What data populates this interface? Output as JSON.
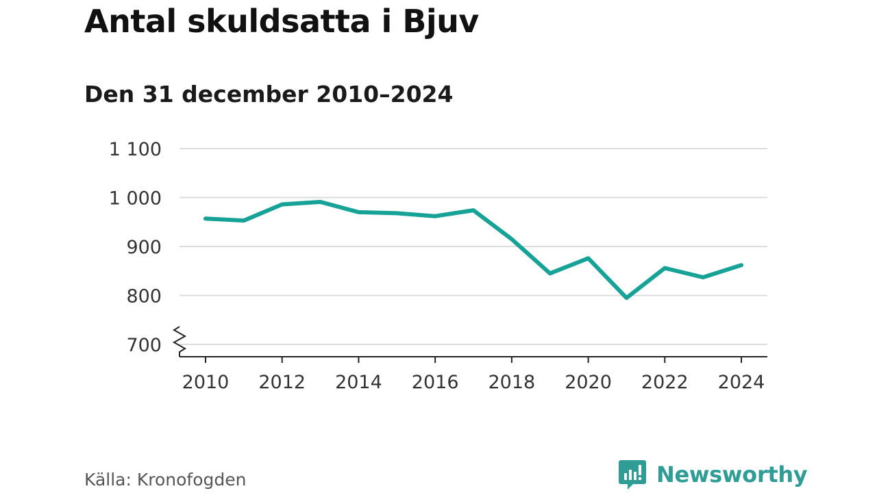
{
  "chart_data": {
    "type": "line",
    "title": "Antal skuldsatta i Bjuv",
    "subtitle": "Den 31 december 2010–2024",
    "x": [
      2010,
      2011,
      2012,
      2013,
      2014,
      2015,
      2016,
      2017,
      2018,
      2019,
      2020,
      2021,
      2022,
      2023,
      2024
    ],
    "series": [
      {
        "values": [
          957,
          953,
          986,
          991,
          970,
          968,
          962,
          974,
          915,
          845,
          876,
          795,
          856,
          837,
          862
        ]
      }
    ],
    "xticks": [
      2010,
      2012,
      2014,
      2016,
      2018,
      2020,
      2022,
      2024
    ],
    "xtick_labels": [
      "2010",
      "2012",
      "2014",
      "2016",
      "2018",
      "2020",
      "2022",
      "2024"
    ],
    "yticks": [
      700,
      800,
      900,
      1000,
      1100
    ],
    "ytick_labels": [
      "700",
      "800",
      "900",
      "1 000",
      "1 100"
    ],
    "ylim": [
      700,
      1100
    ],
    "xlim": [
      2010,
      2024
    ],
    "y_axis_break": true,
    "grid": true,
    "line_color": "#16a297"
  },
  "footer": {
    "source": "Källa: Kronofogden",
    "brand": "Newsworthy",
    "brand_color": "#2f9d95",
    "brand_icon": "bar-chart-speech-icon"
  }
}
